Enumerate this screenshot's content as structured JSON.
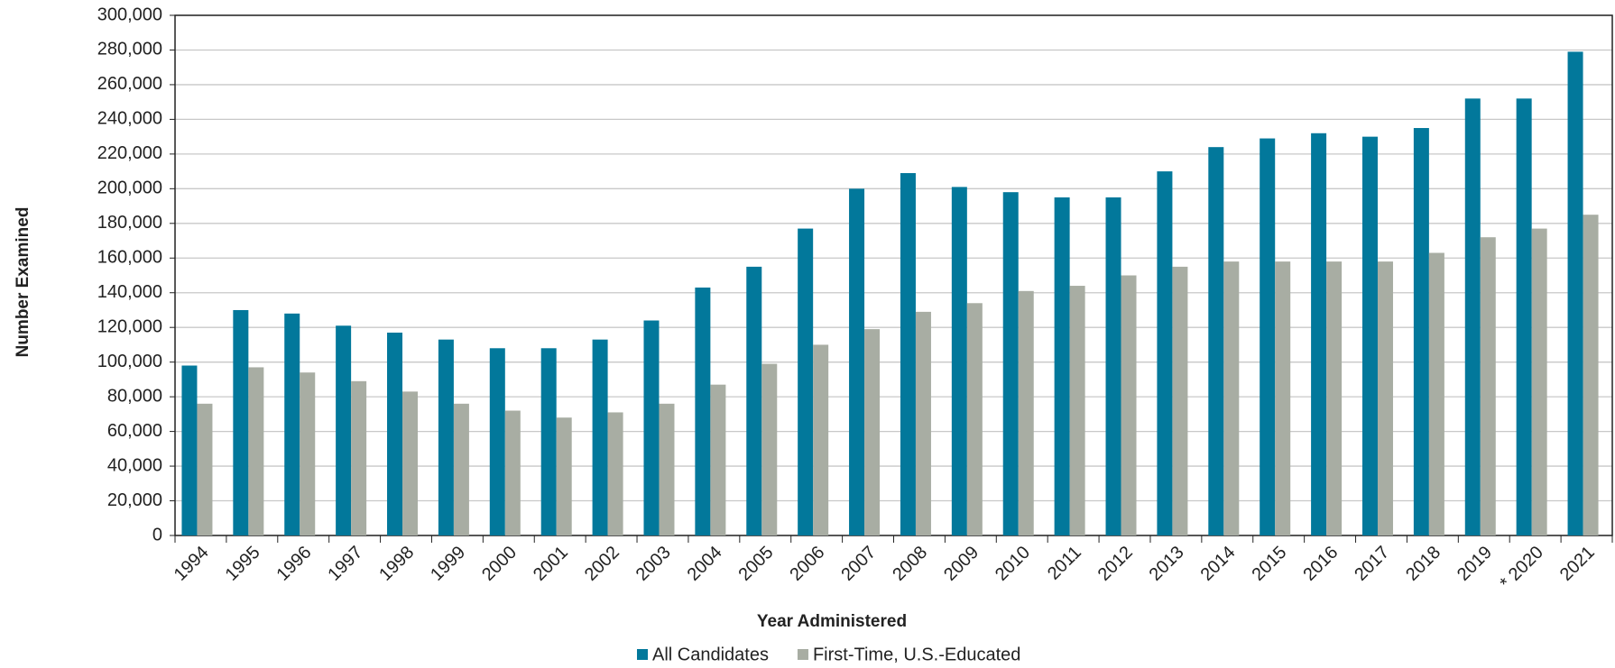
{
  "chart_data": {
    "type": "bar",
    "x_label": "Year Administered",
    "y_label": "Number Examined",
    "categories": [
      "1994",
      "1995",
      "1996",
      "1997",
      "1998",
      "1999",
      "2000",
      "2001",
      "2002",
      "2003",
      "2004",
      "2005",
      "2006",
      "2007",
      "2008",
      "2009",
      "2010",
      "2011",
      "2012",
      "2013",
      "2014",
      "2015",
      "2016",
      "2017",
      "2018",
      "2019",
      "* 2020",
      "2021"
    ],
    "series": [
      {
        "name": "All Candidates",
        "color": "#02789b",
        "values": [
          98000,
          130000,
          128000,
          121000,
          117000,
          113000,
          108000,
          108000,
          113000,
          124000,
          143000,
          155000,
          177000,
          200000,
          209000,
          201000,
          198000,
          195000,
          195000,
          210000,
          224000,
          229000,
          232000,
          230000,
          235000,
          252000,
          252000,
          279000
        ]
      },
      {
        "name": "First-Time, U.S.-Educated",
        "color": "#a8ada3",
        "values": [
          76000,
          97000,
          94000,
          89000,
          83000,
          76000,
          72000,
          68000,
          71000,
          76000,
          87000,
          99000,
          110000,
          119000,
          129000,
          134000,
          141000,
          144000,
          150000,
          155000,
          158000,
          158000,
          158000,
          158000,
          163000,
          172000,
          177000,
          185000
        ]
      }
    ],
    "ylim": [
      0,
      300000
    ],
    "yticks": [
      0,
      {
        "value": 20000,
        "label": "20,000"
      },
      {
        "value": 40000,
        "label": "40,000"
      },
      {
        "value": 60000,
        "label": "60,000"
      },
      {
        "value": 80000,
        "label": "80,000"
      },
      {
        "value": 100000,
        "label": "100,000"
      },
      {
        "value": 120000,
        "label": "120,000"
      },
      {
        "value": 140000,
        "label": "140,000"
      },
      {
        "value": 160000,
        "label": "160,000"
      },
      {
        "value": 180000,
        "label": "180,000"
      },
      {
        "value": 200000,
        "label": "200,000"
      },
      {
        "value": 220000,
        "label": "220,000"
      },
      {
        "value": 240000,
        "label": "240,000"
      },
      {
        "value": 260000,
        "label": "260,000"
      },
      {
        "value": 280000,
        "label": "280,000"
      },
      {
        "value": 300000,
        "label": "300,000"
      }
    ],
    "grid": true,
    "legend": "bottom"
  }
}
